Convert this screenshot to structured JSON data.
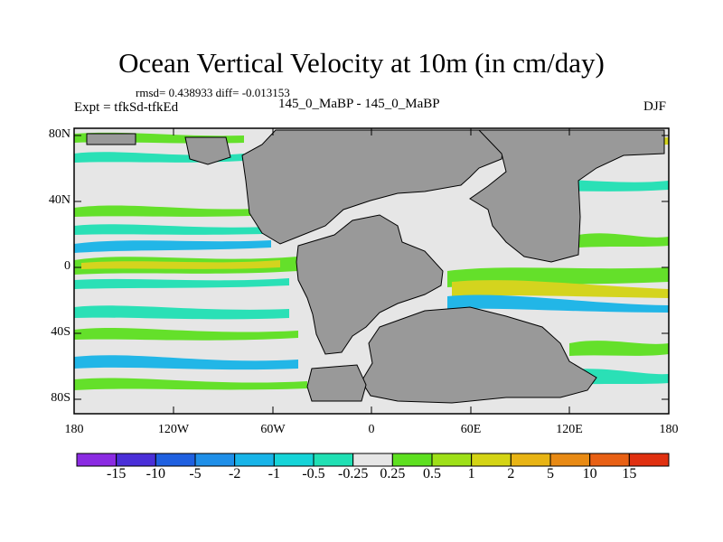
{
  "figure": {
    "title": "Ocean Vertical Velocity at 10m (in cm/day)",
    "stats": "rmsd= 0.438933 diff= -0.013153",
    "left_label": "Expt = tfkSd-tfkEd",
    "center_label": "145_0_MaBP - 145_0_MaBP",
    "right_label": "DJF"
  },
  "axes": {
    "lat_ticks": [
      "80N",
      "40N",
      "0",
      "40S",
      "80S"
    ],
    "lon_ticks": [
      "180",
      "120W",
      "60W",
      "0",
      "60E",
      "120E",
      "180"
    ]
  },
  "colorbar": {
    "labels": [
      "-15",
      "-10",
      "-5",
      "-2",
      "-1",
      "-0.5",
      "-0.25",
      "0.25",
      "0.5",
      "1",
      "2",
      "5",
      "10",
      "15"
    ],
    "colors": [
      "#8b2be2",
      "#4a2fd8",
      "#1f60e0",
      "#1f8fe8",
      "#18b4e8",
      "#16d4d8",
      "#20e0b4",
      "#e6e6e6",
      "#5ee020",
      "#9ee018",
      "#d4d414",
      "#e8b414",
      "#e88a14",
      "#e86014",
      "#e03010"
    ]
  },
  "map": {
    "land_color": "#999999",
    "ocean_neutral": "#e6e6e6",
    "description_none": ""
  }
}
